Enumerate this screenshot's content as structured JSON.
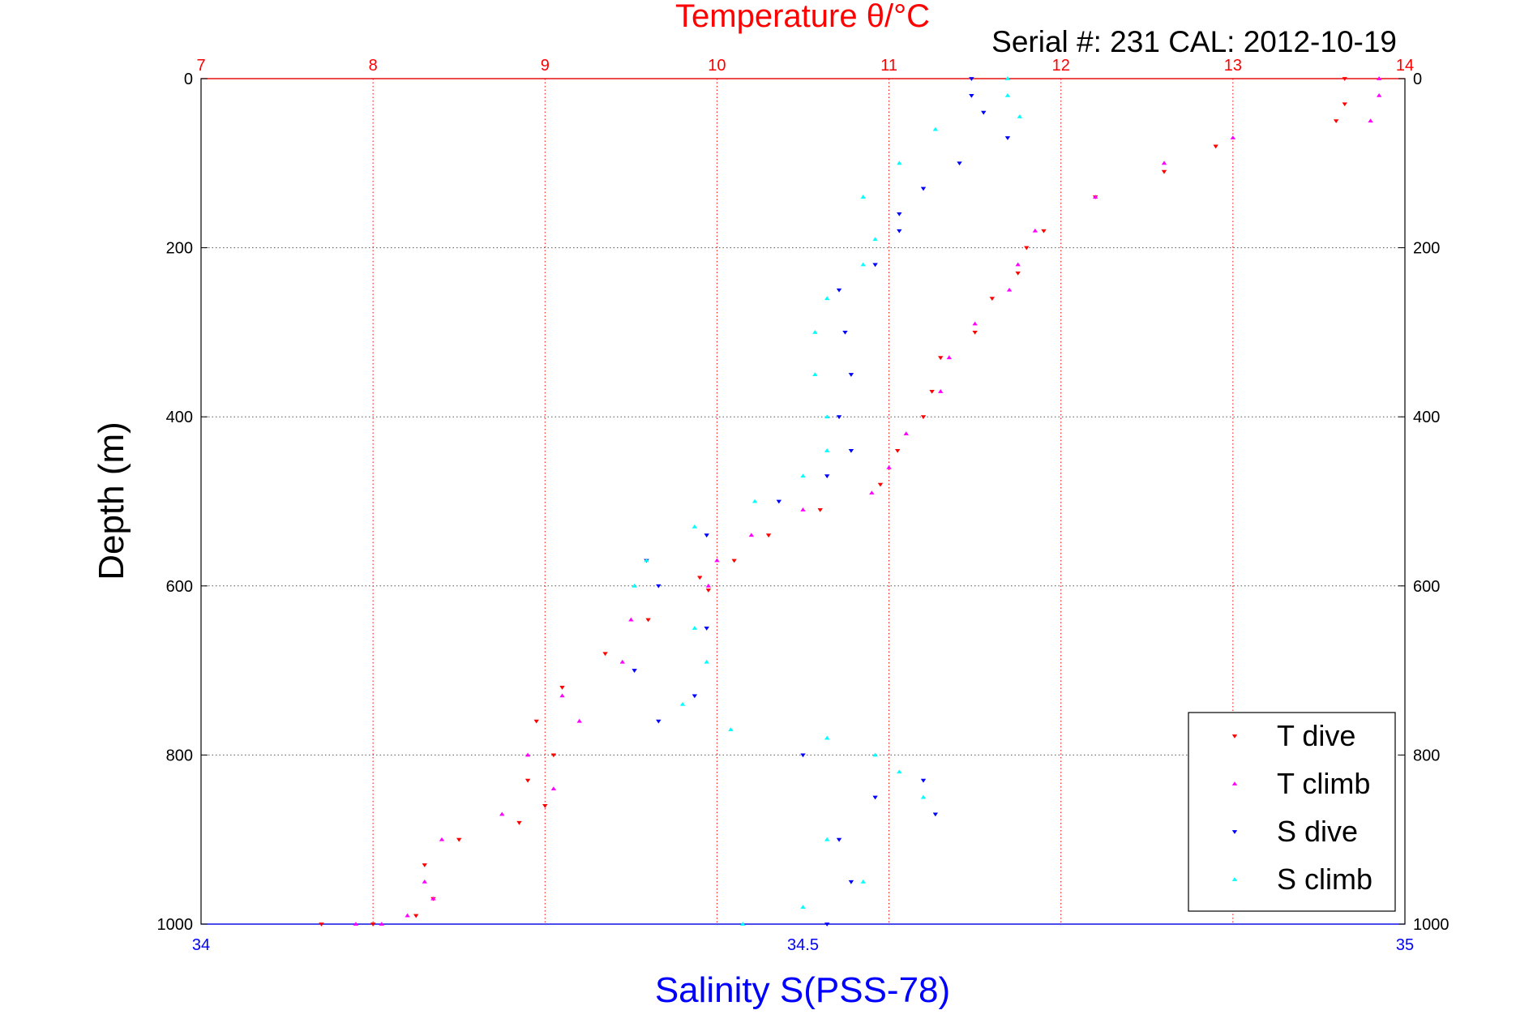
{
  "chart_data": {
    "type": "scatter",
    "title": "Temperature θ/°C",
    "subtitle": "Serial #: 231  CAL: 2012-10-19",
    "ylabel": "Depth (m)",
    "xlabel": "Salinity S(PSS-78)",
    "ylim": [
      0,
      1000
    ],
    "y_reversed": true,
    "y_ticks": [
      "0",
      "200",
      "400",
      "600",
      "800",
      "1000"
    ],
    "temperature_axis": {
      "position": "top",
      "range": [
        7,
        14
      ],
      "color": "#ff0000",
      "ticks": [
        "7",
        "8",
        "9",
        "10",
        "11",
        "12",
        "13",
        "14"
      ]
    },
    "salinity_axis": {
      "position": "bottom",
      "range": [
        34,
        35
      ],
      "color": "#0000ff",
      "ticks": [
        "34",
        "34.5",
        "35"
      ]
    },
    "grid": true,
    "legend_position": "bottom-right",
    "series": [
      {
        "name": "T dive",
        "axis": "temperature",
        "color": "#ff0000",
        "marker": "triangle-down",
        "x": [
          13.65,
          13.65,
          13.6,
          12.9,
          12.6,
          12.2,
          11.9,
          11.8,
          11.75,
          11.6,
          11.5,
          11.3,
          11.25,
          11.2,
          11.05,
          10.95,
          10.6,
          10.3,
          10.1,
          9.9,
          9.95,
          9.6,
          9.35,
          9.1,
          8.95,
          9.05,
          8.9,
          9.0,
          8.85,
          8.5,
          8.3,
          8.35,
          8.25,
          8.0,
          7.7
        ],
        "y": [
          0,
          30,
          50,
          80,
          110,
          140,
          180,
          200,
          230,
          260,
          300,
          330,
          370,
          400,
          440,
          480,
          510,
          540,
          570,
          590,
          605,
          640,
          680,
          720,
          760,
          800,
          830,
          860,
          880,
          900,
          930,
          970,
          990,
          1000,
          1000
        ]
      },
      {
        "name": "T climb",
        "axis": "temperature",
        "color": "#ff00ff",
        "marker": "triangle-up",
        "x": [
          13.85,
          13.85,
          13.8,
          13.0,
          12.6,
          12.2,
          11.85,
          11.75,
          11.7,
          11.5,
          11.35,
          11.3,
          11.1,
          11.0,
          10.9,
          10.5,
          10.2,
          10.0,
          9.95,
          9.5,
          9.45,
          9.1,
          9.2,
          8.9,
          9.05,
          8.75,
          8.4,
          8.3,
          8.35,
          8.2,
          8.05,
          7.9
        ],
        "y": [
          0,
          20,
          50,
          70,
          100,
          140,
          180,
          220,
          250,
          290,
          330,
          370,
          420,
          460,
          490,
          510,
          540,
          570,
          600,
          640,
          690,
          730,
          760,
          800,
          840,
          870,
          900,
          950,
          970,
          990,
          1000,
          1000
        ]
      },
      {
        "name": "S dive",
        "axis": "salinity",
        "color": "#0000ff",
        "marker": "triangle-down",
        "x": [
          34.64,
          34.64,
          34.65,
          34.67,
          34.63,
          34.6,
          34.58,
          34.58,
          34.56,
          34.53,
          34.535,
          34.54,
          34.53,
          34.54,
          34.52,
          34.48,
          34.42,
          34.37,
          34.38,
          34.42,
          34.36,
          34.41,
          34.38,
          34.5,
          34.6,
          34.56,
          34.61,
          34.53,
          34.54,
          34.52
        ],
        "y": [
          0,
          20,
          40,
          70,
          100,
          130,
          160,
          180,
          220,
          250,
          300,
          350,
          400,
          440,
          470,
          500,
          540,
          570,
          600,
          650,
          700,
          730,
          760,
          800,
          830,
          850,
          870,
          900,
          950,
          1000
        ]
      },
      {
        "name": "S climb",
        "axis": "salinity",
        "color": "#00ffff",
        "marker": "triangle-up",
        "x": [
          34.67,
          34.67,
          34.68,
          34.61,
          34.58,
          34.55,
          34.56,
          34.55,
          34.52,
          34.51,
          34.51,
          34.52,
          34.52,
          34.5,
          34.46,
          34.41,
          34.37,
          34.36,
          34.41,
          34.42,
          34.4,
          34.44,
          34.52,
          34.56,
          34.58,
          34.6,
          34.52,
          34.55,
          34.5,
          34.45
        ],
        "y": [
          0,
          20,
          45,
          60,
          100,
          140,
          190,
          220,
          260,
          300,
          350,
          400,
          440,
          470,
          500,
          530,
          570,
          600,
          650,
          690,
          740,
          770,
          780,
          800,
          820,
          850,
          900,
          950,
          980,
          1000
        ]
      }
    ]
  }
}
